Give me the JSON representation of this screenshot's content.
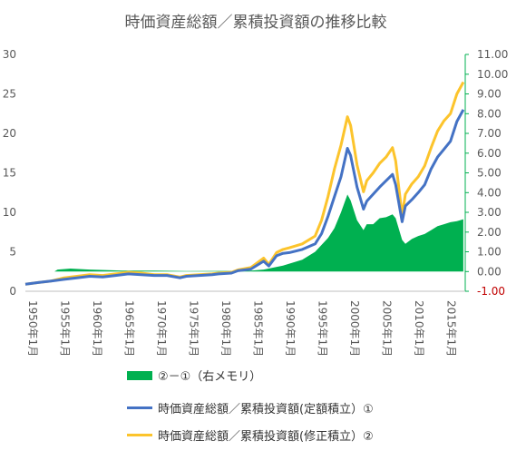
{
  "chart_data": {
    "type": "line",
    "title": "時価資産総額／累積投資額の推移比較",
    "x": [
      "1950年1月",
      "1955年1月",
      "1960年1月",
      "1965年1月",
      "1970年1月",
      "1975年1月",
      "1980年1月",
      "1985年1月",
      "1990年1月",
      "1995年1月",
      "2000年1月",
      "2005年1月",
      "2010年1月",
      "2015年1月"
    ],
    "x_years": [
      1950,
      1955,
      1960,
      1965,
      1970,
      1975,
      1980,
      1985,
      1990,
      1995,
      2000,
      2005,
      2010,
      2015
    ],
    "y_left": {
      "ylim": [
        0,
        30
      ],
      "ticks": [
        "0",
        "5",
        "10",
        "15",
        "20",
        "25",
        "30"
      ]
    },
    "y_right": {
      "ylim": [
        -1,
        11
      ],
      "ticks": [
        "-1.00",
        "0.00",
        "1.00",
        "2.00",
        "3.00",
        "4.00",
        "5.00",
        "6.00",
        "7.00",
        "8.00",
        "9.00",
        "10.00",
        "11.00"
      ],
      "negative_color": "#c00000"
    },
    "grid": false,
    "legend_position": "bottom",
    "series": [
      {
        "name": "②－①（右メモリ）",
        "type": "area",
        "axis": "right",
        "color": "#00b050",
        "x": [
          1954.5,
          1955,
          1957,
          1960,
          1965,
          1970,
          1975,
          1980,
          1983,
          1985,
          1987,
          1990,
          1993,
          1995,
          1997,
          1998,
          1999,
          2000,
          2000.5,
          2001.5,
          2002.5,
          2003,
          2004,
          2005,
          2006,
          2007,
          2007.5,
          2008.5,
          2009,
          2010,
          2011,
          2012,
          2013,
          2014,
          2015,
          2016,
          2017,
          2018
        ],
        "values": [
          0,
          0.1,
          0.15,
          0.1,
          0.05,
          0.05,
          0.02,
          0.03,
          0.03,
          0.05,
          0.1,
          0.3,
          0.6,
          1.0,
          1.7,
          2.2,
          3.0,
          3.9,
          3.6,
          2.6,
          2.1,
          2.4,
          2.4,
          2.7,
          2.75,
          2.9,
          2.7,
          1.6,
          1.4,
          1.65,
          1.8,
          1.9,
          2.1,
          2.3,
          2.4,
          2.5,
          2.55,
          2.65
        ]
      },
      {
        "name": "時価資産総額／累積投資額(定額積立）①",
        "type": "line",
        "axis": "left",
        "color": "#4472c4",
        "x": [
          1950,
          1952,
          1954,
          1956,
          1958,
          1960,
          1962,
          1964,
          1966,
          1968,
          1970,
          1972,
          1974,
          1975,
          1977,
          1979,
          1980,
          1982,
          1983,
          1985,
          1987,
          1987.8,
          1989,
          1990,
          1991,
          1993,
          1995,
          1996,
          1997,
          1998,
          1999,
          2000,
          2000.5,
          2001.5,
          2002.5,
          2003,
          2004,
          2005,
          2006,
          2007,
          2007.5,
          2008.5,
          2009,
          2010,
          2011,
          2012,
          2013,
          2014,
          2015,
          2016,
          2017,
          2018
        ],
        "values": [
          0.9,
          1.1,
          1.3,
          1.5,
          1.7,
          1.9,
          1.8,
          2.0,
          2.2,
          2.1,
          2.0,
          2.0,
          1.7,
          1.9,
          2.0,
          2.1,
          2.2,
          2.3,
          2.6,
          2.8,
          3.8,
          3.2,
          4.5,
          4.8,
          4.9,
          5.3,
          6.0,
          7.3,
          9.5,
          12.0,
          14.5,
          18.1,
          17.2,
          13.2,
          10.4,
          11.4,
          12.3,
          13.2,
          14.0,
          14.8,
          13.5,
          8.8,
          10.8,
          11.6,
          12.5,
          13.5,
          15.5,
          17.0,
          18.0,
          19.0,
          21.5,
          23.0
        ]
      },
      {
        "name": "時価資産総額／累積投資額(修正積立）②",
        "type": "line",
        "axis": "left",
        "color": "#fcc42c",
        "x": [
          1950,
          1952,
          1954,
          1956,
          1958,
          1960,
          1962,
          1964,
          1966,
          1968,
          1970,
          1972,
          1974,
          1975,
          1977,
          1979,
          1980,
          1982,
          1983,
          1985,
          1987,
          1987.8,
          1989,
          1990,
          1991,
          1993,
          1995,
          1996,
          1997,
          1998,
          1999,
          2000,
          2000.5,
          2001.5,
          2002.5,
          2003,
          2004,
          2005,
          2006,
          2007,
          2007.5,
          2008.5,
          2009,
          2010,
          2011,
          2012,
          2013,
          2014,
          2015,
          2016,
          2017,
          2018
        ],
        "values": [
          0.9,
          1.1,
          1.3,
          1.7,
          1.9,
          2.1,
          2.0,
          2.2,
          2.4,
          2.3,
          2.1,
          2.1,
          1.8,
          2.0,
          2.1,
          2.2,
          2.3,
          2.4,
          2.7,
          3.0,
          4.2,
          3.4,
          4.9,
          5.3,
          5.5,
          6.0,
          7.0,
          9.0,
          12.0,
          15.5,
          18.5,
          22.1,
          21.0,
          16.0,
          12.6,
          14.0,
          15.0,
          16.2,
          17.0,
          18.2,
          16.5,
          9.6,
          12.3,
          13.6,
          14.5,
          15.9,
          18.2,
          20.3,
          21.6,
          22.5,
          25.0,
          26.5
        ]
      }
    ]
  }
}
